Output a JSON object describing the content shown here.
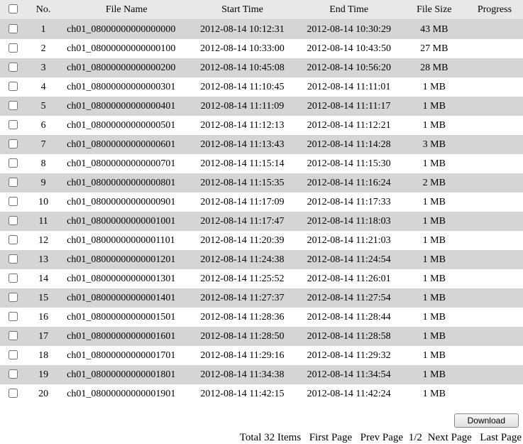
{
  "columns": {
    "no": "No.",
    "file_name": "File Name",
    "start_time": "Start Time",
    "end_time": "End Time",
    "file_size": "File Size",
    "progress": "Progress"
  },
  "rows": [
    {
      "no": "1",
      "file": "ch01_08000000000000000",
      "start": "2012-08-14 10:12:31",
      "end": "2012-08-14 10:30:29",
      "size": "43 MB",
      "progress": ""
    },
    {
      "no": "2",
      "file": "ch01_08000000000000100",
      "start": "2012-08-14 10:33:00",
      "end": "2012-08-14 10:43:50",
      "size": "27 MB",
      "progress": ""
    },
    {
      "no": "3",
      "file": "ch01_08000000000000200",
      "start": "2012-08-14 10:45:08",
      "end": "2012-08-14 10:56:20",
      "size": "28 MB",
      "progress": ""
    },
    {
      "no": "4",
      "file": "ch01_08000000000000301",
      "start": "2012-08-14 11:10:45",
      "end": "2012-08-14 11:11:01",
      "size": "1 MB",
      "progress": ""
    },
    {
      "no": "5",
      "file": "ch01_08000000000000401",
      "start": "2012-08-14 11:11:09",
      "end": "2012-08-14 11:11:17",
      "size": "1 MB",
      "progress": ""
    },
    {
      "no": "6",
      "file": "ch01_08000000000000501",
      "start": "2012-08-14 11:12:13",
      "end": "2012-08-14 11:12:21",
      "size": "1 MB",
      "progress": ""
    },
    {
      "no": "7",
      "file": "ch01_08000000000000601",
      "start": "2012-08-14 11:13:43",
      "end": "2012-08-14 11:14:28",
      "size": "3 MB",
      "progress": ""
    },
    {
      "no": "8",
      "file": "ch01_08000000000000701",
      "start": "2012-08-14 11:15:14",
      "end": "2012-08-14 11:15:30",
      "size": "1 MB",
      "progress": ""
    },
    {
      "no": "9",
      "file": "ch01_08000000000000801",
      "start": "2012-08-14 11:15:35",
      "end": "2012-08-14 11:16:24",
      "size": "2 MB",
      "progress": ""
    },
    {
      "no": "10",
      "file": "ch01_08000000000000901",
      "start": "2012-08-14 11:17:09",
      "end": "2012-08-14 11:17:33",
      "size": "1 MB",
      "progress": ""
    },
    {
      "no": "11",
      "file": "ch01_08000000000001001",
      "start": "2012-08-14 11:17:47",
      "end": "2012-08-14 11:18:03",
      "size": "1 MB",
      "progress": ""
    },
    {
      "no": "12",
      "file": "ch01_08000000000001101",
      "start": "2012-08-14 11:20:39",
      "end": "2012-08-14 11:21:03",
      "size": "1 MB",
      "progress": ""
    },
    {
      "no": "13",
      "file": "ch01_08000000000001201",
      "start": "2012-08-14 11:24:38",
      "end": "2012-08-14 11:24:54",
      "size": "1 MB",
      "progress": ""
    },
    {
      "no": "14",
      "file": "ch01_08000000000001301",
      "start": "2012-08-14 11:25:52",
      "end": "2012-08-14 11:26:01",
      "size": "1 MB",
      "progress": ""
    },
    {
      "no": "15",
      "file": "ch01_08000000000001401",
      "start": "2012-08-14 11:27:37",
      "end": "2012-08-14 11:27:54",
      "size": "1 MB",
      "progress": ""
    },
    {
      "no": "16",
      "file": "ch01_08000000000001501",
      "start": "2012-08-14 11:28:36",
      "end": "2012-08-14 11:28:44",
      "size": "1 MB",
      "progress": ""
    },
    {
      "no": "17",
      "file": "ch01_08000000000001601",
      "start": "2012-08-14 11:28:50",
      "end": "2012-08-14 11:28:58",
      "size": "1 MB",
      "progress": ""
    },
    {
      "no": "18",
      "file": "ch01_08000000000001701",
      "start": "2012-08-14 11:29:16",
      "end": "2012-08-14 11:29:32",
      "size": "1 MB",
      "progress": ""
    },
    {
      "no": "19",
      "file": "ch01_08000000000001801",
      "start": "2012-08-14 11:34:38",
      "end": "2012-08-14 11:34:54",
      "size": "1 MB",
      "progress": ""
    },
    {
      "no": "20",
      "file": "ch01_08000000000001901",
      "start": "2012-08-14 11:42:15",
      "end": "2012-08-14 11:42:24",
      "size": "1 MB",
      "progress": ""
    }
  ],
  "buttons": {
    "download": "Download"
  },
  "pager": {
    "total": "Total 32 Items",
    "first": "First Page",
    "prev": "Prev Page",
    "position": "1/2",
    "next": "Next Page",
    "last": "Last Page"
  }
}
